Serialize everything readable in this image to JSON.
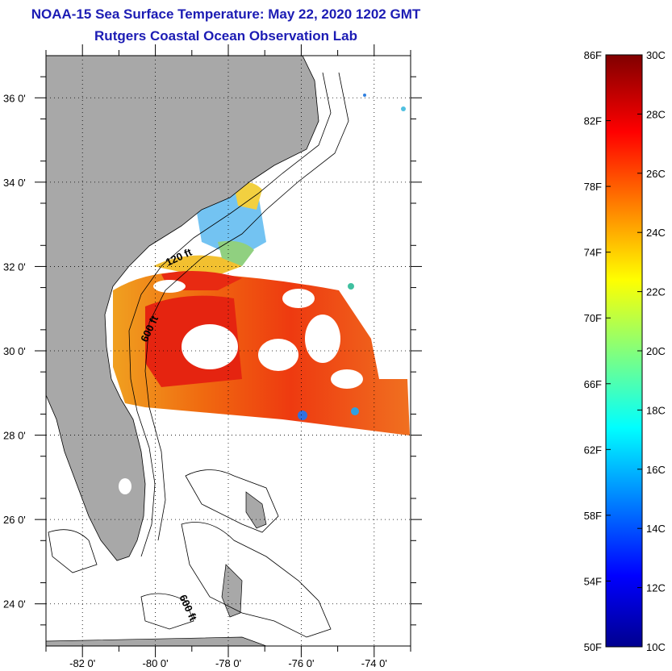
{
  "title": {
    "line1": "NOAA-15 Sea Surface Temperature:  May 22, 2020 1202 GMT",
    "line2": "Rutgers Coastal Ocean Observation Lab"
  },
  "map": {
    "lon_range": [
      -83,
      -73
    ],
    "lat_range": [
      23,
      37
    ],
    "lat_ticks": [
      "36 0'",
      "34 0'",
      "32 0'",
      "30 0'",
      "28 0'",
      "26 0'",
      "24 0'"
    ],
    "lon_ticks": [
      "-82 0'",
      "-80 0'",
      "-78 0'",
      "-76 0'",
      "-74 0'"
    ],
    "isobath_labels": [
      "120 ft",
      "600 ft",
      "600 ft"
    ],
    "land_color": "#a8a8a8"
  },
  "colorbar": {
    "fahrenheit_labels": [
      "86F",
      "82F",
      "78F",
      "74F",
      "70F",
      "66F",
      "62F",
      "58F",
      "54F",
      "50F"
    ],
    "celsius_labels": [
      "30C",
      "28C",
      "26C",
      "24C",
      "22C",
      "20C",
      "18C",
      "16C",
      "14C",
      "12C",
      "10C"
    ],
    "range_c": [
      10,
      30
    ],
    "palette": "jet"
  }
}
